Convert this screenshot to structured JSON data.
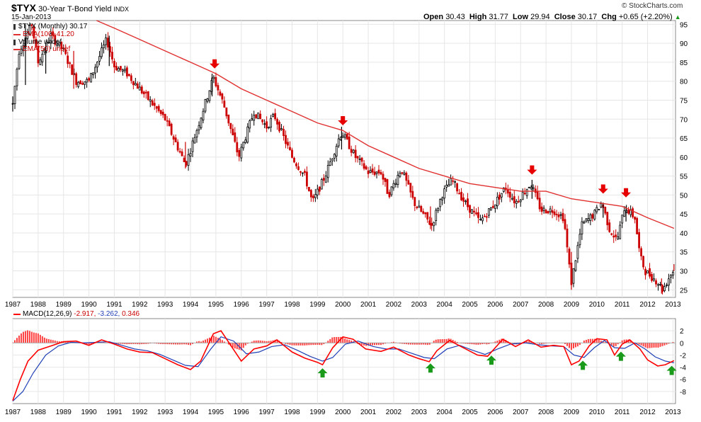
{
  "header": {
    "symbol": "$TYX",
    "name": "30-Year T-Bond Yield",
    "exchange": "INDX",
    "date": "15-Jan-2013",
    "open_label": "Open",
    "open": "30.43",
    "high_label": "High",
    "high": "31.77",
    "low_label": "Low",
    "low": "29.94",
    "close_label": "Close",
    "close": "30.17",
    "chg_label": "Chg",
    "chg": "+0.65 (+2.20%)",
    "watermark": "© StockCharts.com"
  },
  "colors": {
    "up": "#000000",
    "down": "#cc0000",
    "ema": "#e03030",
    "macd": "#ff0000",
    "signal": "#1f3fb5",
    "hist": "#ff4040",
    "arrow_down": "#e60000",
    "arrow_up": "#1a9a1a",
    "grid": "#e6e6e6"
  },
  "chart_data": [
    {
      "type": "candlestick",
      "legend": [
        {
          "label": "$TYX (Monthly) 30.17",
          "icon": "candlestick-icon"
        },
        {
          "label": "EMA(100) 41.20",
          "icon": "red-line-icon"
        },
        {
          "label": "Volume undef",
          "icon": "volume-bars-icon"
        },
        {
          "label": "EMA(50) undef",
          "icon": "red-line-icon"
        }
      ],
      "ylim": [
        23,
        96
      ],
      "y_ticks": [
        25,
        30,
        35,
        40,
        45,
        50,
        55,
        60,
        65,
        70,
        75,
        80,
        85,
        90,
        95
      ],
      "x_ticks": [
        "1987",
        "1988",
        "1989",
        "1990",
        "1991",
        "1992",
        "1993",
        "1994",
        "1995",
        "1996",
        "1997",
        "1998",
        "1999",
        "2000",
        "2001",
        "2002",
        "2003",
        "2004",
        "2005",
        "2006",
        "2007",
        "2008",
        "2009",
        "2010",
        "2011",
        "2012",
        "2013"
      ],
      "price_path": [
        [
          1987.0,
          74
        ],
        [
          1987.25,
          88
        ],
        [
          1987.75,
          95
        ],
        [
          1988.0,
          85
        ],
        [
          1988.5,
          92
        ],
        [
          1989.0,
          88
        ],
        [
          1989.5,
          80
        ],
        [
          1990.0,
          80
        ],
        [
          1990.7,
          91
        ],
        [
          1991.0,
          84
        ],
        [
          1991.5,
          82
        ],
        [
          1992.0,
          78
        ],
        [
          1992.5,
          74
        ],
        [
          1993.0,
          70
        ],
        [
          1993.8,
          58
        ],
        [
          1994.0,
          62
        ],
        [
          1994.9,
          81
        ],
        [
          1995.3,
          74
        ],
        [
          1995.9,
          60
        ],
        [
          1996.5,
          72
        ],
        [
          1997.0,
          68
        ],
        [
          1997.3,
          71
        ],
        [
          1998.0,
          60
        ],
        [
          1998.5,
          55
        ],
        [
          1998.8,
          48
        ],
        [
          1999.3,
          55
        ],
        [
          1999.9,
          66
        ],
        [
          2000.0,
          66
        ],
        [
          2000.5,
          60
        ],
        [
          2001.0,
          56
        ],
        [
          2001.5,
          56
        ],
        [
          2001.8,
          50
        ],
        [
          2002.3,
          57
        ],
        [
          2002.8,
          48
        ],
        [
          2003.5,
          42
        ],
        [
          2003.9,
          50
        ],
        [
          2004.3,
          54
        ],
        [
          2004.8,
          48
        ],
        [
          2005.4,
          43
        ],
        [
          2005.9,
          47
        ],
        [
          2006.4,
          52
        ],
        [
          2006.8,
          48
        ],
        [
          2007.4,
          53
        ],
        [
          2007.8,
          46
        ],
        [
          2008.3,
          46
        ],
        [
          2008.7,
          44
        ],
        [
          2008.9,
          32
        ],
        [
          2009.0,
          27
        ],
        [
          2009.4,
          42
        ],
        [
          2009.9,
          45
        ],
        [
          2010.2,
          48
        ],
        [
          2010.5,
          41
        ],
        [
          2010.8,
          38
        ],
        [
          2011.1,
          47
        ],
        [
          2011.5,
          44
        ],
        [
          2011.7,
          34
        ],
        [
          2011.9,
          30
        ],
        [
          2012.4,
          27
        ],
        [
          2012.6,
          25
        ],
        [
          2012.9,
          29
        ],
        [
          2013.04,
          30.17
        ]
      ],
      "candles": [
        {
          "x": 1987.0,
          "o": 74,
          "h": 76,
          "l": 72,
          "c": 75
        },
        {
          "x": 1987.5,
          "o": 80,
          "h": 95,
          "l": 79,
          "c": 92
        },
        {
          "x": 1988.3,
          "o": 85,
          "h": 90,
          "l": 82,
          "c": 89
        },
        {
          "x": 1989.4,
          "o": 86,
          "h": 88,
          "l": 78,
          "c": 80
        },
        {
          "x": 1990.8,
          "o": 86,
          "h": 92,
          "l": 84,
          "c": 90
        },
        {
          "x": 1993.8,
          "o": 62,
          "h": 64,
          "l": 57,
          "c": 59
        },
        {
          "x": 1994.85,
          "o": 78,
          "h": 82,
          "l": 76,
          "c": 81
        },
        {
          "x": 1999.95,
          "o": 63,
          "h": 68,
          "l": 62,
          "c": 66
        },
        {
          "x": 2003.45,
          "o": 46,
          "h": 47,
          "l": 41,
          "c": 43
        },
        {
          "x": 2007.45,
          "o": 50,
          "h": 54,
          "l": 49,
          "c": 52
        },
        {
          "x": 2009.0,
          "o": 30,
          "h": 35,
          "l": 25,
          "c": 27
        },
        {
          "x": 2010.25,
          "o": 46,
          "h": 48,
          "l": 44,
          "c": 47
        },
        {
          "x": 2011.15,
          "o": 45,
          "h": 47,
          "l": 43,
          "c": 46
        },
        {
          "x": 2012.55,
          "o": 27,
          "h": 28,
          "l": 24,
          "c": 25
        },
        {
          "x": 2013.04,
          "o": 30.43,
          "h": 31.77,
          "l": 29.94,
          "c": 30.17
        }
      ],
      "ema100": [
        [
          1990.3,
          96
        ],
        [
          1991.0,
          94
        ],
        [
          1992.0,
          91
        ],
        [
          1993.0,
          88
        ],
        [
          1994.0,
          85
        ],
        [
          1995.0,
          82
        ],
        [
          1996.0,
          78
        ],
        [
          1997.0,
          75
        ],
        [
          1998.0,
          72
        ],
        [
          1999.0,
          69
        ],
        [
          2000.0,
          67
        ],
        [
          2001.0,
          63
        ],
        [
          2002.0,
          60
        ],
        [
          2003.0,
          57
        ],
        [
          2004.0,
          55
        ],
        [
          2005.0,
          53
        ],
        [
          2006.0,
          52
        ],
        [
          2007.0,
          51
        ],
        [
          2008.0,
          51
        ],
        [
          2009.0,
          49
        ],
        [
          2010.0,
          48
        ],
        [
          2011.0,
          47
        ],
        [
          2012.0,
          44
        ],
        [
          2013.04,
          41.2
        ]
      ],
      "down_arrows_x": [
        1994.95,
        2000.0,
        2007.45,
        2010.25,
        2011.15
      ]
    },
    {
      "type": "line",
      "legend": [
        {
          "label": "MACD(12,26,9)",
          "icon": "red-line-icon"
        },
        {
          "label": "-2.917,",
          "icon": ""
        },
        {
          "label": "-3.262,",
          "icon": ""
        },
        {
          "label": "0.346",
          "icon": ""
        }
      ],
      "ylim": [
        -10,
        4
      ],
      "y_ticks": [
        2,
        0,
        -2,
        -4,
        -6,
        -8
      ],
      "x_ticks": [
        "1987",
        "1988",
        "1989",
        "1990",
        "1991",
        "1992",
        "1993",
        "1994",
        "1995",
        "1996",
        "1997",
        "1998",
        "1999",
        "2000",
        "2001",
        "2002",
        "2003",
        "2004",
        "2005",
        "2006",
        "2007",
        "2008",
        "2009",
        "2010",
        "2011",
        "2012",
        "2013"
      ],
      "macd": [
        [
          1987.0,
          -9.5
        ],
        [
          1987.3,
          -6
        ],
        [
          1987.6,
          -3
        ],
        [
          1988.0,
          -1.2
        ],
        [
          1988.5,
          -0.5
        ],
        [
          1989.0,
          0.2
        ],
        [
          1989.5,
          0.3
        ],
        [
          1990.0,
          -0.4
        ],
        [
          1990.5,
          0.5
        ],
        [
          1991.0,
          -0.2
        ],
        [
          1991.5,
          -1.0
        ],
        [
          1992.0,
          -1.5
        ],
        [
          1992.5,
          -1.6
        ],
        [
          1993.0,
          -2.6
        ],
        [
          1993.5,
          -3.6
        ],
        [
          1994.0,
          -4.4
        ],
        [
          1994.4,
          -3.0
        ],
        [
          1994.9,
          1.5
        ],
        [
          1995.2,
          2.0
        ],
        [
          1995.6,
          -0.5
        ],
        [
          1996.0,
          -3.0
        ],
        [
          1996.5,
          -1.0
        ],
        [
          1997.0,
          -0.5
        ],
        [
          1997.4,
          0.5
        ],
        [
          1998.0,
          -1.5
        ],
        [
          1998.5,
          -2.5
        ],
        [
          1999.0,
          -3.2
        ],
        [
          1999.2,
          -3.6
        ],
        [
          1999.6,
          -0.8
        ],
        [
          2000.0,
          1.0
        ],
        [
          2000.4,
          0.6
        ],
        [
          2000.9,
          -1.0
        ],
        [
          2001.5,
          -1.4
        ],
        [
          2002.0,
          -0.7
        ],
        [
          2002.6,
          -2.0
        ],
        [
          2003.0,
          -2.6
        ],
        [
          2003.4,
          -3.1
        ],
        [
          2003.7,
          -1.3
        ],
        [
          2004.2,
          0.4
        ],
        [
          2004.7,
          -0.7
        ],
        [
          2005.3,
          -2.0
        ],
        [
          2005.7,
          -2.2
        ],
        [
          2006.3,
          0.6
        ],
        [
          2006.8,
          -0.6
        ],
        [
          2007.3,
          0.5
        ],
        [
          2007.8,
          -0.7
        ],
        [
          2008.3,
          -0.4
        ],
        [
          2008.7,
          -0.6
        ],
        [
          2009.0,
          -3.6
        ],
        [
          2009.3,
          -3.0
        ],
        [
          2009.7,
          -0.5
        ],
        [
          2010.0,
          0.7
        ],
        [
          2010.4,
          0.5
        ],
        [
          2010.7,
          -2.0
        ],
        [
          2011.0,
          -0.2
        ],
        [
          2011.3,
          0.5
        ],
        [
          2011.7,
          -1.0
        ],
        [
          2012.0,
          -2.8
        ],
        [
          2012.4,
          -3.8
        ],
        [
          2012.7,
          -3.6
        ],
        [
          2013.04,
          -2.917
        ]
      ],
      "signal": [
        [
          1987.0,
          -9.6
        ],
        [
          1987.4,
          -8
        ],
        [
          1987.8,
          -5
        ],
        [
          1988.3,
          -2
        ],
        [
          1988.8,
          -0.5
        ],
        [
          1989.3,
          0.1
        ],
        [
          1989.8,
          0.0
        ],
        [
          1990.3,
          0.1
        ],
        [
          1990.8,
          0.2
        ],
        [
          1991.3,
          -0.4
        ],
        [
          1991.8,
          -1.0
        ],
        [
          1992.3,
          -1.3
        ],
        [
          1992.8,
          -1.9
        ],
        [
          1993.3,
          -2.8
        ],
        [
          1993.8,
          -3.7
        ],
        [
          1994.3,
          -3.9
        ],
        [
          1994.8,
          -1.0
        ],
        [
          1995.2,
          1.0
        ],
        [
          1995.7,
          0.3
        ],
        [
          1996.2,
          -1.8
        ],
        [
          1996.7,
          -1.5
        ],
        [
          1997.2,
          -0.6
        ],
        [
          1997.7,
          -0.3
        ],
        [
          1998.2,
          -1.2
        ],
        [
          1998.7,
          -2.2
        ],
        [
          1999.2,
          -3.0
        ],
        [
          1999.6,
          -2.4
        ],
        [
          2000.1,
          -0.2
        ],
        [
          2000.6,
          0.3
        ],
        [
          2001.2,
          -0.6
        ],
        [
          2001.7,
          -1.0
        ],
        [
          2002.2,
          -1.0
        ],
        [
          2002.7,
          -1.7
        ],
        [
          2003.2,
          -2.4
        ],
        [
          2003.6,
          -2.6
        ],
        [
          2004.1,
          -1.0
        ],
        [
          2004.6,
          -0.4
        ],
        [
          2005.1,
          -1.2
        ],
        [
          2005.6,
          -1.9
        ],
        [
          2006.1,
          -1.0
        ],
        [
          2006.6,
          -0.2
        ],
        [
          2007.2,
          0.0
        ],
        [
          2007.7,
          -0.3
        ],
        [
          2008.2,
          -0.5
        ],
        [
          2008.7,
          -0.6
        ],
        [
          2009.1,
          -2.0
        ],
        [
          2009.5,
          -2.4
        ],
        [
          2009.9,
          -0.8
        ],
        [
          2010.3,
          0.4
        ],
        [
          2010.7,
          -0.8
        ],
        [
          2011.1,
          -0.9
        ],
        [
          2011.5,
          0.0
        ],
        [
          2011.9,
          -1.0
        ],
        [
          2012.3,
          -2.3
        ],
        [
          2012.7,
          -3.0
        ],
        [
          2013.04,
          -3.262
        ]
      ],
      "histogram_note": "positive red bars",
      "up_arrows_x": [
        1999.2,
        2003.45,
        2005.85,
        2009.45,
        2010.95,
        2012.95
      ]
    }
  ]
}
